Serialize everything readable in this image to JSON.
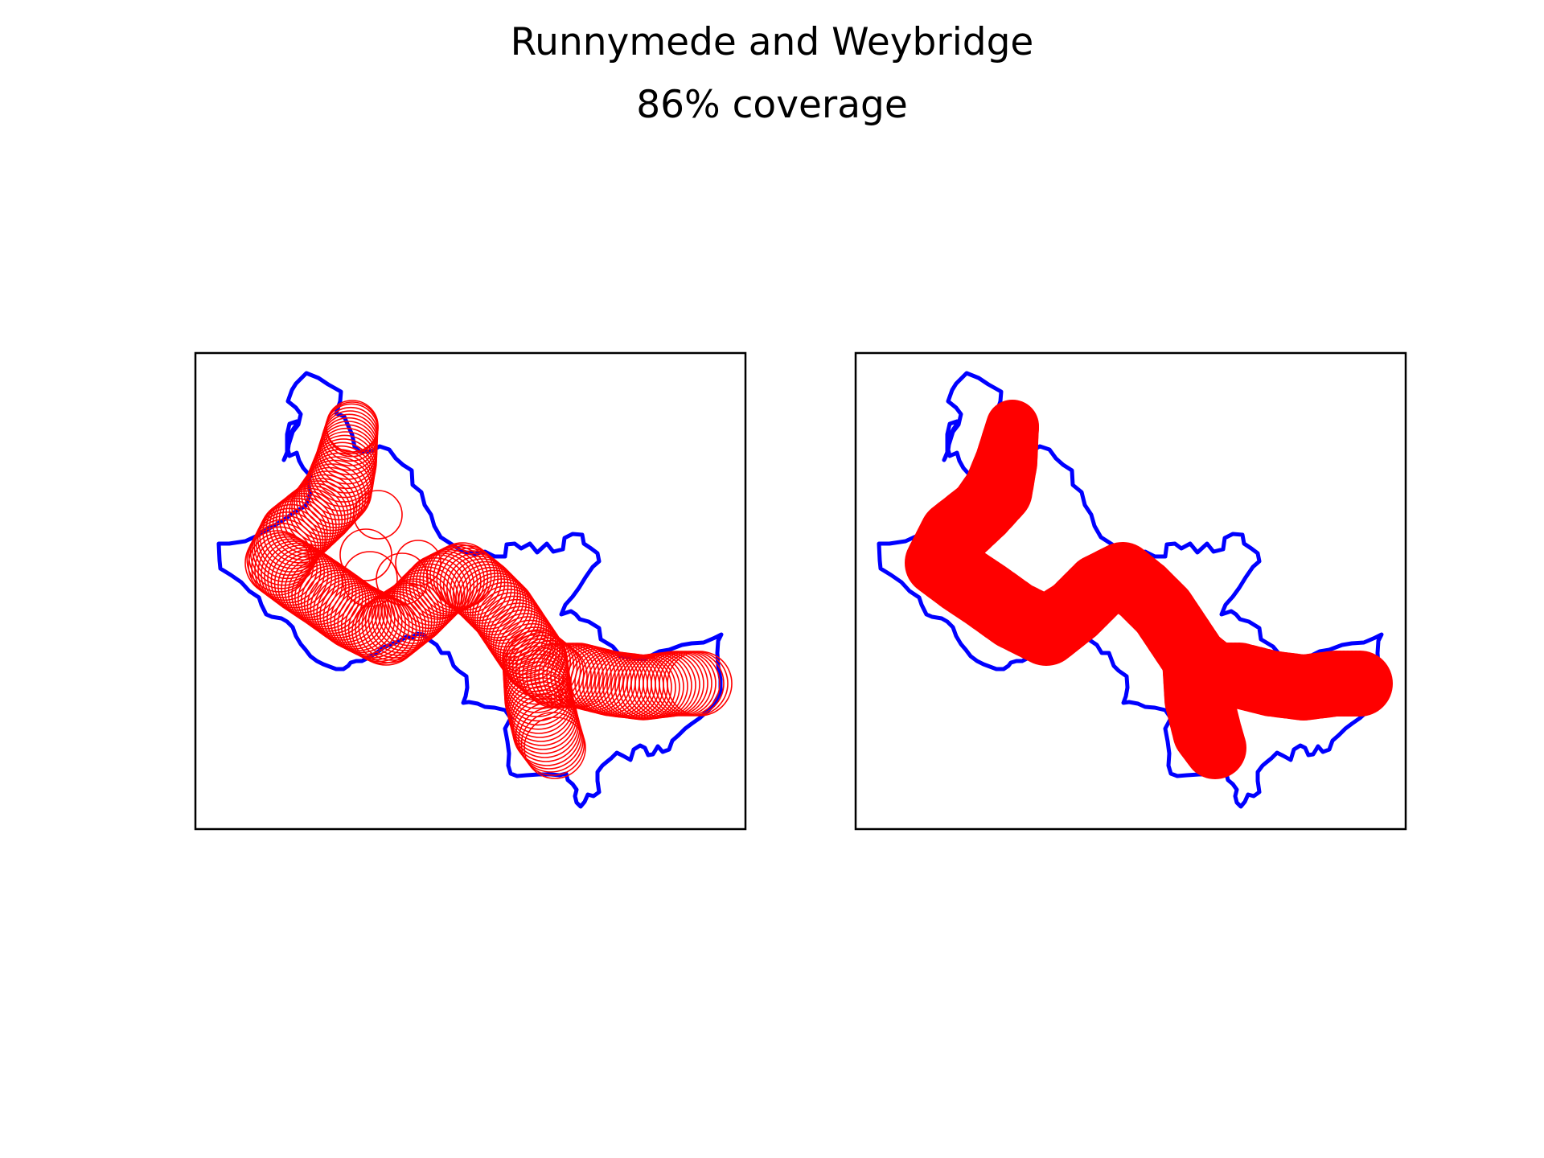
{
  "figure": {
    "title": "Runnymede and Weybridge",
    "subtitle": "86% coverage"
  },
  "colors": {
    "boundary": "#0000ff",
    "coverage": "#ff0000",
    "frame": "#000000",
    "background": "#ffffff"
  },
  "panels": [
    {
      "name": "coverage-circles-panel",
      "style": "outline"
    },
    {
      "name": "coverage-filled-panel",
      "style": "filled"
    }
  ]
}
